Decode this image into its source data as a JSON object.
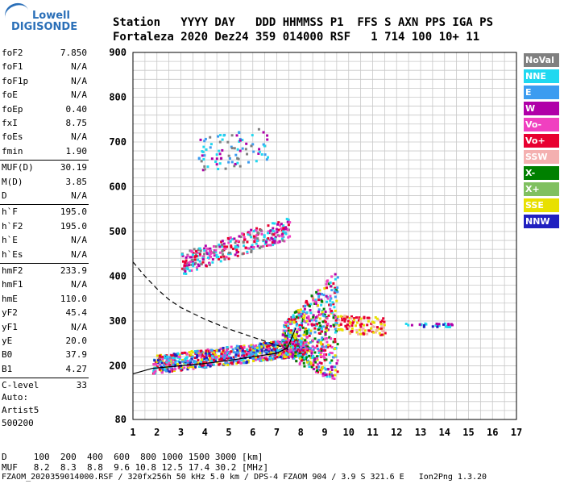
{
  "logo": {
    "line1": "Lowell",
    "line2": "DIGISONDE"
  },
  "header": {
    "labels": "Station   YYYY DAY   DDD HHMMSS P1  FFS S AXN PPS IGA PS",
    "values": "Fortaleza 2020 Dez24 359 014000 RSF   1 714 100 10+ 11"
  },
  "params": [
    {
      "name": "foF2",
      "value": "7.850"
    },
    {
      "name": "foF1",
      "value": "N/A"
    },
    {
      "name": "foF1p",
      "value": "N/A"
    },
    {
      "name": "foE",
      "value": "N/A"
    },
    {
      "name": "foEp",
      "value": "0.40"
    },
    {
      "name": "fxI",
      "value": "8.75"
    },
    {
      "name": "foEs",
      "value": "N/A"
    },
    {
      "name": "fmin",
      "value": "1.90"
    },
    {
      "name": "MUF(D)",
      "value": "30.19"
    },
    {
      "name": "M(D)",
      "value": "3.85"
    },
    {
      "name": "D",
      "value": "N/A"
    },
    {
      "name": "h`F",
      "value": "195.0"
    },
    {
      "name": "h`F2",
      "value": "195.0"
    },
    {
      "name": "h`E",
      "value": "N/A"
    },
    {
      "name": "h`Es",
      "value": "N/A"
    },
    {
      "name": "hmF2",
      "value": "233.9"
    },
    {
      "name": "hmF1",
      "value": "N/A"
    },
    {
      "name": "hmE",
      "value": "110.0"
    },
    {
      "name": "yF2",
      "value": "45.4"
    },
    {
      "name": "yF1",
      "value": "N/A"
    },
    {
      "name": "yE",
      "value": "20.0"
    },
    {
      "name": "B0",
      "value": "37.9"
    },
    {
      "name": "B1",
      "value": "4.27"
    },
    {
      "name": "C-level",
      "value": "33"
    }
  ],
  "auto": {
    "line1": "Auto:",
    "line2": "Artist5",
    "line3": "500200"
  },
  "footer": {
    "d_row": "D     100  200  400  600  800 1000 1500 3000 [km]",
    "muf_row": "MUF   8.2  8.3  8.8  9.6 10.8 12.5 17.4 30.2 [MHz]",
    "file_row": "FZAOM_2020359014000.RSF / 320fx256h 50 kHz 5.0 km / DPS-4 FZAOM 904 / 3.9 S 321.6 E   Ion2Png 1.3.20"
  },
  "legend": [
    {
      "label": "NoVal",
      "color": "#808080"
    },
    {
      "label": "NNE",
      "color": "#20d8f0"
    },
    {
      "label": "E",
      "color": "#3c9cf0"
    },
    {
      "label": "W",
      "color": "#b000a8"
    },
    {
      "label": "Vo-",
      "color": "#f040c0"
    },
    {
      "label": "Vo+",
      "color": "#e80030"
    },
    {
      "label": "SSW",
      "color": "#f4b0b0"
    },
    {
      "label": "X-",
      "color": "#008000"
    },
    {
      "label": "X+",
      "color": "#80c060"
    },
    {
      "label": "SSE",
      "color": "#e8e000"
    },
    {
      "label": "NNW",
      "color": "#2020c0"
    }
  ],
  "chart_data": {
    "type": "scatter",
    "xlim": [
      1,
      17
    ],
    "ylim": [
      80,
      900
    ],
    "x_ticks": [
      1,
      2,
      3,
      4,
      5,
      6,
      7,
      8,
      9,
      10,
      11,
      12,
      13,
      14,
      15,
      16,
      17
    ],
    "y_ticks": [
      80,
      200,
      300,
      400,
      500,
      600,
      700,
      800,
      900
    ],
    "grid": true,
    "clusters": [
      {
        "name": "main-trace",
        "x_range": [
          1.8,
          8.2
        ],
        "y_base": [
          205,
          245
        ],
        "spread": 20,
        "colors": [
          "#e80030",
          "#f040c0",
          "#20d8f0",
          "#3c9cf0",
          "#e8e000",
          "#2020c0"
        ],
        "count": 900
      },
      {
        "name": "spread-f-cloud",
        "x_range": [
          7.2,
          9.5
        ],
        "y_base": [
          260,
          290
        ],
        "spread": 90,
        "colors": [
          "#e80030",
          "#f040c0",
          "#b000a8",
          "#e8e000",
          "#20d8f0",
          "#3c9cf0",
          "#008000"
        ],
        "count": 600
      },
      {
        "name": "high-band",
        "x_range": [
          3,
          7.5
        ],
        "y_base": [
          430,
          510
        ],
        "spread": 25,
        "colors": [
          "#b000a8",
          "#e80030",
          "#808080",
          "#20d8f0",
          "#f040c0"
        ],
        "count": 320
      },
      {
        "name": "upper-band",
        "x_range": [
          3.7,
          6.6
        ],
        "y_base": [
          670,
          700
        ],
        "spread": 40,
        "colors": [
          "#20d8f0",
          "#3c9cf0",
          "#b000a8",
          "#808080"
        ],
        "count": 90
      },
      {
        "name": "tail",
        "x_range": [
          9.5,
          11.5
        ],
        "y_base": [
          295,
          290
        ],
        "spread": 20,
        "colors": [
          "#e8e000",
          "#f4b0b0",
          "#e80030"
        ],
        "count": 120
      },
      {
        "name": "far-tail",
        "x_range": [
          12.3,
          14.3
        ],
        "y_base": [
          293,
          293
        ],
        "spread": 4,
        "colors": [
          "#20d8f0",
          "#2020c0",
          "#b000a8"
        ],
        "count": 30
      }
    ],
    "profile_curve": {
      "x": [
        1,
        1.8,
        3,
        4,
        5,
        6,
        7,
        7.45,
        7.6,
        7.8
      ],
      "y": [
        182,
        194,
        200,
        205,
        212,
        220,
        228,
        240,
        260,
        285
      ]
    },
    "mirror_curve": {
      "x": [
        1,
        1.5,
        2,
        2.5,
        3,
        4,
        5,
        6,
        7,
        7.5
      ],
      "y": [
        432,
        400,
        372,
        348,
        330,
        304,
        282,
        264,
        246,
        236
      ]
    }
  }
}
